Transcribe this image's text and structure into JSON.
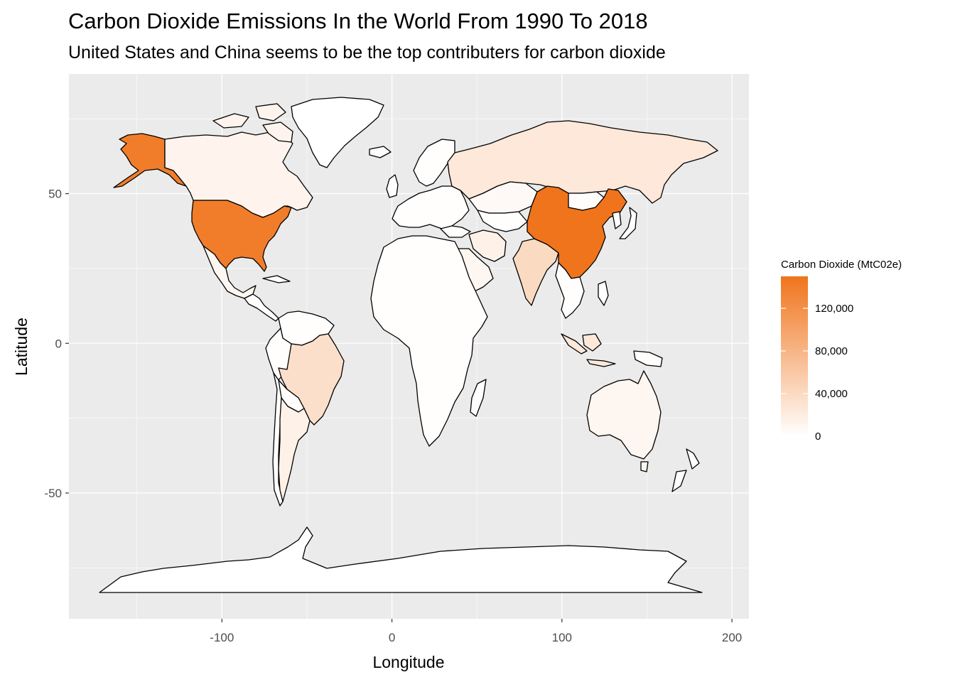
{
  "title": "Carbon Dioxide Emissions In the World From 1990 To 2018",
  "subtitle": "United States and China seems to be the top contributers for carbon dioxide",
  "colors": {
    "panel_bg": "#ebebeb",
    "grid_major": "#ffffff",
    "low": "#ffffff",
    "high": "#f0741c",
    "border": "#000000"
  },
  "chart_data": {
    "type": "choropleth-map",
    "xlabel": "Longitude",
    "ylabel": "Latitude",
    "xlim": [
      -190,
      210
    ],
    "ylim": [
      -92,
      90
    ],
    "x_ticks": [
      -100,
      0,
      100,
      200
    ],
    "x_tick_labels": [
      "-100",
      "0",
      "100",
      "200"
    ],
    "y_ticks": [
      -50,
      0,
      50
    ],
    "y_tick_labels": [
      "-50",
      "0",
      "50"
    ],
    "grid": true,
    "legend": {
      "title": "Carbon Dioxide (MtC02e)",
      "placement": "right",
      "limits": [
        0,
        150000
      ],
      "breaks": [
        0,
        40000,
        80000,
        120000
      ],
      "break_labels": [
        "0",
        "40,000",
        "80,000",
        "120,000"
      ]
    },
    "regions": [
      {
        "name": "China",
        "value": 150000
      },
      {
        "name": "United States",
        "value": 140000
      },
      {
        "name": "Alaska (US)",
        "value": 140000
      },
      {
        "name": "India",
        "value": 40000
      },
      {
        "name": "Brazil",
        "value": 35000
      },
      {
        "name": "Russia",
        "value": 25000
      },
      {
        "name": "Indonesia",
        "value": 25000
      },
      {
        "name": "Argentina",
        "value": 15000
      },
      {
        "name": "Iran",
        "value": 15000
      },
      {
        "name": "Canada",
        "value": 12000
      },
      {
        "name": "Mexico",
        "value": 10000
      },
      {
        "name": "Australia",
        "value": 10000
      },
      {
        "name": "Saudi Arabia",
        "value": 10000
      },
      {
        "name": "Kazakhstan",
        "value": 6000
      },
      {
        "name": "Mongolia",
        "value": 2000
      },
      {
        "name": "Greenland",
        "value": 0
      },
      {
        "name": "Antarctica",
        "value": 0
      }
    ]
  }
}
